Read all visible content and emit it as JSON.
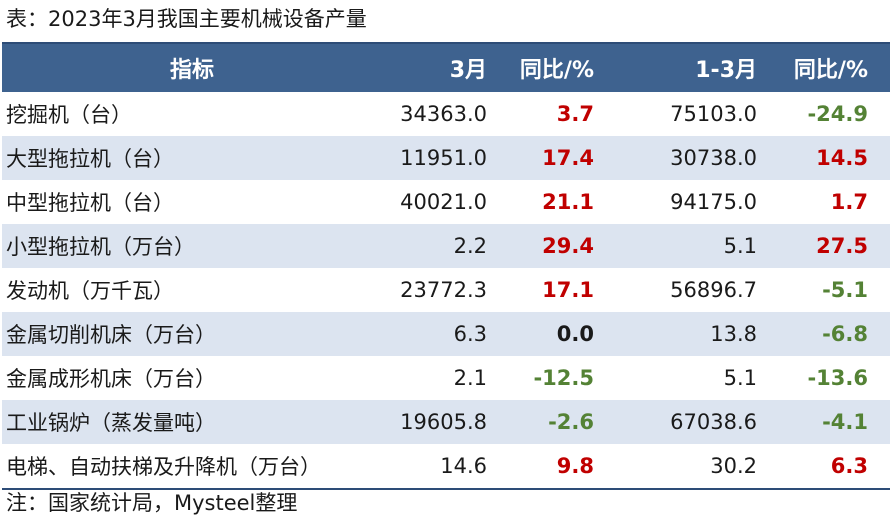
{
  "caption": "表：2023年3月我国主要机械设备产量",
  "note": "注：国家统计局，Mysteel整理",
  "colors": {
    "header_bg": "#3e628f",
    "alt_row_bg": "#dce4f0",
    "positive": "#c00000",
    "negative": "#548235"
  },
  "headers": [
    "指标",
    "3月",
    "同比/%",
    "1-3月",
    "同比/%"
  ],
  "rows": [
    {
      "name": "挖掘机（台）",
      "m3": "34363.0",
      "yoy": "3.7",
      "ytd": "75103.0",
      "ytd_yoy": "-24.9"
    },
    {
      "name": "大型拖拉机（台）",
      "m3": "11951.0",
      "yoy": "17.4",
      "ytd": "30738.0",
      "ytd_yoy": "14.5"
    },
    {
      "name": "中型拖拉机（台）",
      "m3": "40021.0",
      "yoy": "21.1",
      "ytd": "94175.0",
      "ytd_yoy": "1.7"
    },
    {
      "name": "小型拖拉机（万台）",
      "m3": "2.2",
      "yoy": "29.4",
      "ytd": "5.1",
      "ytd_yoy": "27.5"
    },
    {
      "name": "发动机（万千瓦）",
      "m3": "23772.3",
      "yoy": "17.1",
      "ytd": "56896.7",
      "ytd_yoy": "-5.1"
    },
    {
      "name": "金属切削机床（万台）",
      "m3": "6.3",
      "yoy": "0.0",
      "ytd": "13.8",
      "ytd_yoy": "-6.8"
    },
    {
      "name": "金属成形机床（万台）",
      "m3": "2.1",
      "yoy": "-12.5",
      "ytd": "5.1",
      "ytd_yoy": "-13.6"
    },
    {
      "name": "工业锅炉（蒸发量吨）",
      "m3": "19605.8",
      "yoy": "-2.6",
      "ytd": "67038.6",
      "ytd_yoy": "-4.1"
    },
    {
      "name": "电梯、自动扶梯及升降机（万台）",
      "m3": "14.6",
      "yoy": "9.8",
      "ytd": "30.2",
      "ytd_yoy": "6.3"
    }
  ]
}
